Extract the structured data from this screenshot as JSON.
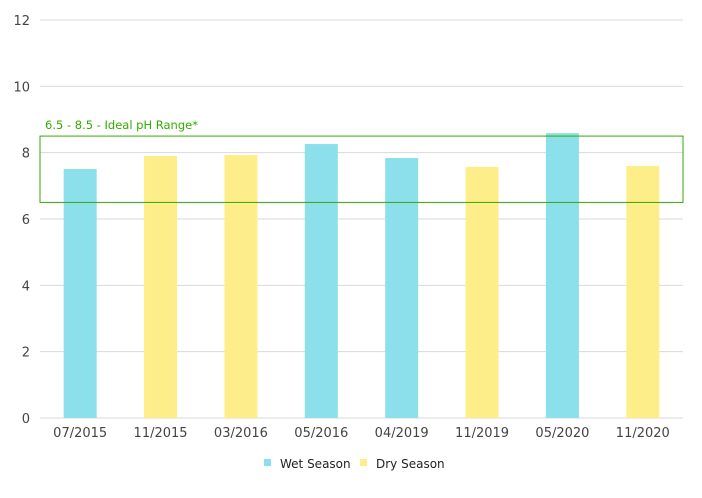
{
  "chart_data": {
    "type": "bar",
    "title": "",
    "xlabel": "",
    "ylabel": "",
    "ylim": [
      0,
      12
    ],
    "yticks": [
      "0",
      "2",
      "4",
      "6",
      "8",
      "10",
      "12"
    ],
    "grid": true,
    "categories": [
      "07/2015",
      "11/2015",
      "03/2016",
      "05/2016",
      "04/2019",
      "11/2019",
      "05/2020",
      "11/2020"
    ],
    "values": [
      7.51,
      7.9,
      7.93,
      8.26,
      7.84,
      7.57,
      8.59,
      7.6
    ],
    "season": [
      "Wet Season",
      "Dry Season",
      "Dry Season",
      "Wet Season",
      "Wet Season",
      "Dry Season",
      "Wet Season",
      "Dry Season"
    ],
    "legend": [
      {
        "name": "Wet Season",
        "color": "#8be0ec"
      },
      {
        "name": "Dry Season",
        "color": "#fdee8a"
      }
    ],
    "legend_position": "bottom",
    "annotation": {
      "label": "6.5 - 8.5 - Ideal pH Range*",
      "range": [
        6.5,
        8.5
      ],
      "color": "#33aa00"
    }
  }
}
